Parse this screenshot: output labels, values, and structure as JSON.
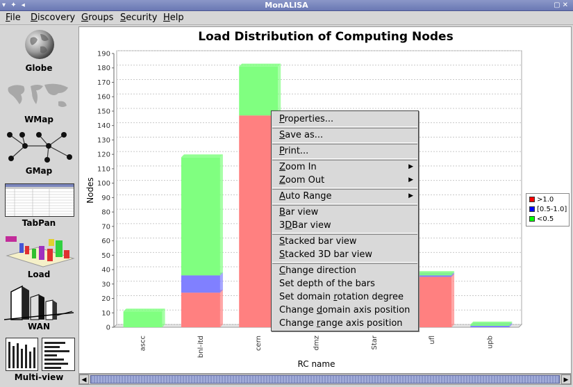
{
  "window": {
    "title": "MonALISA"
  },
  "menubar": {
    "items": [
      {
        "label": "File",
        "u": "F",
        "rest": "ile"
      },
      {
        "label": "Discovery",
        "u": "D",
        "rest": "iscovery"
      },
      {
        "label": "Groups",
        "u": "G",
        "rest": "roups"
      },
      {
        "label": "Security",
        "u": "S",
        "rest": "ecurity"
      },
      {
        "label": "Help",
        "u": "H",
        "rest": "elp"
      }
    ]
  },
  "sidebar": {
    "items": [
      {
        "label": "Globe",
        "icon": "globe-icon"
      },
      {
        "label": "WMap",
        "icon": "world-map-icon"
      },
      {
        "label": "GMap",
        "icon": "graph-map-icon"
      },
      {
        "label": "TabPan",
        "icon": "table-panel-icon"
      },
      {
        "label": "Load",
        "icon": "load-3d-icon"
      },
      {
        "label": "WAN",
        "icon": "wan-buildings-icon"
      },
      {
        "label": "Multi-view",
        "icon": "multi-view-icon"
      }
    ]
  },
  "chart_data": {
    "type": "bar",
    "stacked": true,
    "title": "Load Distribution of Computing Nodes",
    "xlabel": "RC name",
    "ylabel": "Nodes",
    "ylim": [
      0,
      190
    ],
    "yticks": [
      0,
      10,
      20,
      30,
      40,
      50,
      60,
      70,
      80,
      90,
      100,
      110,
      120,
      130,
      140,
      150,
      160,
      170,
      180,
      190
    ],
    "categories": [
      "ascc",
      "bnl-itd",
      "cern",
      "dmz",
      "Star",
      "ufl",
      "upb"
    ],
    "series": [
      {
        "name": ">1.0",
        "color": "#ff8080",
        "values": [
          0,
          24,
          147,
          0,
          0,
          35,
          0
        ]
      },
      {
        "name": "[0.5-1.0]",
        "color": "#8080ff",
        "values": [
          0,
          12,
          0,
          0,
          0,
          1,
          1
        ]
      },
      {
        "name": "<0.5",
        "color": "#80ff80",
        "values": [
          11,
          82,
          34,
          0,
          0,
          1,
          1
        ]
      }
    ],
    "legend_position": "right",
    "grid": true
  },
  "legend": {
    "items": [
      {
        "label": ">1.0",
        "color": "#ff0000"
      },
      {
        "label": "[0.5-1.0]",
        "color": "#0000ff"
      },
      {
        "label": "<0.5",
        "color": "#00ff00"
      }
    ]
  },
  "context_menu": {
    "items": [
      {
        "pre": "",
        "u": "P",
        "post": "roperties...",
        "name": "ctx-properties"
      },
      {
        "sep": true
      },
      {
        "pre": "",
        "u": "S",
        "post": "ave as...",
        "name": "ctx-save-as"
      },
      {
        "sep": true
      },
      {
        "pre": "",
        "u": "P",
        "post": "rint...",
        "name": "ctx-print"
      },
      {
        "sep": true
      },
      {
        "pre": "",
        "u": "Z",
        "post": "oom In",
        "name": "ctx-zoom-in",
        "sub": true
      },
      {
        "pre": "",
        "u": "Z",
        "post": "oom Out",
        "name": "ctx-zoom-out",
        "sub": true
      },
      {
        "sep": true
      },
      {
        "pre": "",
        "u": "A",
        "post": "uto Range",
        "name": "ctx-auto-range",
        "sub": true
      },
      {
        "sep": true
      },
      {
        "pre": "",
        "u": "B",
        "post": "ar view",
        "name": "ctx-bar-view"
      },
      {
        "pre": "3",
        "u": "D",
        "post": "Bar view",
        "name": "ctx-3dbar-view"
      },
      {
        "sep": true
      },
      {
        "pre": "",
        "u": "S",
        "post": "tacked bar view",
        "name": "ctx-stacked-bar-view"
      },
      {
        "pre": "",
        "u": "S",
        "post": "tacked 3D bar view",
        "name": "ctx-stacked-3d-bar-view"
      },
      {
        "sep": true
      },
      {
        "pre": "",
        "u": "C",
        "post": "hange direction",
        "name": "ctx-change-direction"
      },
      {
        "pre": "Set depth of the bars",
        "u": "",
        "post": "",
        "name": "ctx-set-depth"
      },
      {
        "pre": "Set domain ",
        "u": "r",
        "post": "otation degree",
        "name": "ctx-set-rotation"
      },
      {
        "pre": "Change ",
        "u": "d",
        "post": "omain axis position",
        "name": "ctx-change-domain-axis"
      },
      {
        "pre": "Change ",
        "u": "r",
        "post": "ange axis position",
        "name": "ctx-change-range-axis"
      }
    ]
  }
}
